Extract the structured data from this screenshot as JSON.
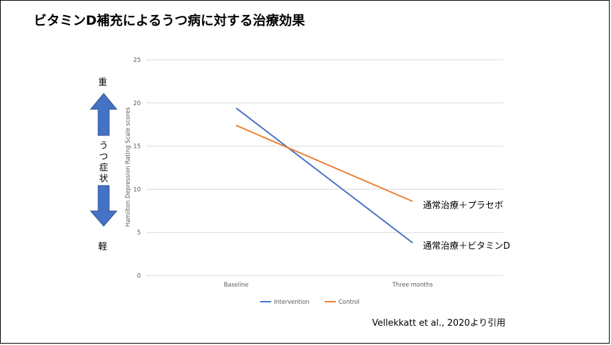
{
  "title": "ビタミンD補充によるうつ病に対する治療効果",
  "severity_scale": {
    "high": "重",
    "middle": "うつ症状",
    "low": "軽"
  },
  "annotations": {
    "control": "通常治療＋プラセボ",
    "intervention": "通常治療＋ビタミンD"
  },
  "source": "Vellekkatt et al., 2020より引用",
  "colors": {
    "intervention": "#4472C4",
    "control": "#ED7D31",
    "arrow": "#4472C4",
    "grid": "#d9d9d9",
    "tick": "#595959"
  },
  "chart_data": {
    "type": "line",
    "categories": [
      "Baseline",
      "Three months"
    ],
    "series": [
      {
        "name": "Intervention",
        "values": [
          19.4,
          3.8
        ]
      },
      {
        "name": "Control",
        "values": [
          17.4,
          8.6
        ]
      }
    ],
    "ylabel": "Hamilton Depression Rating Scale scores",
    "xlabel": "",
    "ylim": [
      0,
      25
    ],
    "yticks": [
      0,
      5,
      10,
      15,
      20,
      25
    ],
    "grid": true,
    "legend_position": "bottom"
  }
}
